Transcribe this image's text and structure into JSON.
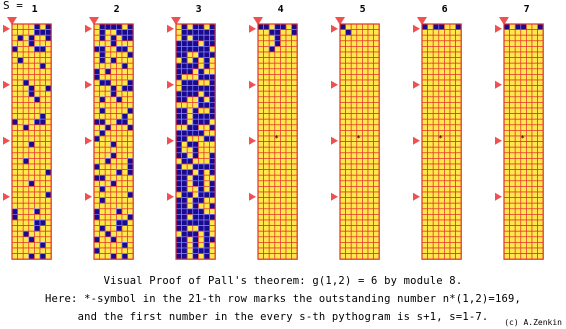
{
  "header": {
    "s_label": "S ="
  },
  "columns": [
    {
      "label": "1",
      "rows": [
        "0000101",
        "0000111",
        "0101001",
        "0001000",
        "1000110",
        "0000000",
        "0100000",
        "0000010",
        "0000000",
        "0000000",
        "0010000",
        "0001001",
        "0001000",
        "0000100",
        "0000000",
        "0000000",
        "0000010",
        "1000110",
        "0010000",
        "0000000",
        "0000000",
        "0001000",
        "0000000",
        "0000000",
        "0010000",
        "0000000",
        "0000001",
        "0000000",
        "0001000",
        "0000000",
        "0000001",
        "0000000",
        "0000000",
        "1000100",
        "1000000",
        "0000110",
        "0000100",
        "0010000",
        "0001000",
        "0000010",
        "0000000",
        "0001010"
      ]
    },
    {
      "label": "2",
      "rows": [
        "0111101",
        "0100111",
        "0101011",
        "0001000",
        "1100110",
        "0100001",
        "0101000",
        "0000010",
        "1010000",
        "1000000",
        "0110001",
        "0001011",
        "0001000",
        "0100100",
        "0000000",
        "0100001",
        "0000010",
        "1100110",
        "0010001",
        "0100000",
        "1000000",
        "0001000",
        "0000000",
        "0001000",
        "0010001",
        "1000001",
        "0000101",
        "1100000",
        "0001000",
        "0100000",
        "0000001",
        "0100000",
        "0000000",
        "1000100",
        "1000001",
        "0000110",
        "0100100",
        "0010000",
        "1001000",
        "0000010",
        "1000000",
        "0001010"
      ]
    },
    {
      "label": "3",
      "rows": [
        "0101101",
        "0111111",
        "0101111",
        "1111011",
        "1111110",
        "1100111",
        "0101010",
        "1111010",
        "1110100",
        "1000111",
        "0111001",
        "0111111",
        "1111011",
        "1100101",
        "0000111",
        "1101001",
        "1101111",
        "1101110",
        "0011001",
        "1111100",
        "1100011",
        "1011000",
        "1001000",
        "1101001",
        "0110001",
        "1001111",
        "1110101",
        "1101100",
        "1101101",
        "1100101",
        "0110111",
        "1101100",
        "1101001",
        "1111100",
        "1101111",
        "1111110",
        "1100110",
        "0111010",
        "1101011",
        "1101010",
        "1101110",
        "1101010"
      ]
    },
    {
      "label": "4",
      "rows": [
        "1101101",
        "0011001",
        "0001000",
        "0001000",
        "0010000",
        "0000000",
        "0000000",
        "0000000",
        "0000000",
        "0000000",
        "0000000",
        "0000000",
        "0000000",
        "0000000",
        "0000000",
        "0000000",
        "0000000",
        "0000000",
        "0000000",
        "0000000",
        "0000000",
        "0000000",
        "0000000",
        "0000000",
        "0000000",
        "0000000",
        "0000000",
        "0000000",
        "0000000",
        "0000000",
        "0000000",
        "0000000",
        "0000000",
        "0000000",
        "0000000",
        "0000000",
        "0000000",
        "0000000",
        "0000000",
        "0000000",
        "0000000",
        "0000000"
      ]
    },
    {
      "label": "5",
      "rows": [
        "1000000",
        "0100000",
        "0000000",
        "0000000",
        "0000000",
        "0000000",
        "0000000",
        "0000000",
        "0000000",
        "0000000",
        "0000000",
        "0000000",
        "0000000",
        "0000000",
        "0000000",
        "0000000",
        "0000000",
        "0000000",
        "0000000",
        "0000000",
        "0000000",
        "0000000",
        "0000000",
        "0000000",
        "0000000",
        "0000000",
        "0000000",
        "0000000",
        "0000000",
        "0000000",
        "0000000",
        "0000000",
        "0000000",
        "0000000",
        "0000000",
        "0000000",
        "0000000",
        "0000000",
        "0000000",
        "0000000",
        "0000000",
        "0000000"
      ]
    },
    {
      "label": "6",
      "rows": [
        "1011001",
        "0000000",
        "0000000",
        "0000000",
        "0000000",
        "0000000",
        "0000000",
        "0000000",
        "0000000",
        "0000000",
        "0000000",
        "0000000",
        "0000000",
        "0000000",
        "0000000",
        "0000000",
        "0000000",
        "0000000",
        "0000000",
        "0000000",
        "0000000",
        "0000000",
        "0000000",
        "0000000",
        "0000000",
        "0000000",
        "0000000",
        "0000000",
        "0000000",
        "0000000",
        "0000000",
        "0000000",
        "0000000",
        "0000000",
        "0000000",
        "0000000",
        "0000000",
        "0000000",
        "0000000",
        "0000000",
        "0000000",
        "0000000"
      ]
    },
    {
      "label": "7",
      "rows": [
        "1011001",
        "0000000",
        "0000000",
        "0000000",
        "0000000",
        "0000000",
        "0000000",
        "0000000",
        "0000000",
        "0000000",
        "0000000",
        "0000000",
        "0000000",
        "0000000",
        "0000000",
        "0000000",
        "0000000",
        "0000000",
        "0000000",
        "0000000",
        "0000000",
        "0000000",
        "0000000",
        "0000000",
        "0000000",
        "0000000",
        "0000000",
        "0000000",
        "0000000",
        "0000000",
        "0000000",
        "0000000",
        "0000000",
        "0000000",
        "0000000",
        "0000000",
        "0000000",
        "0000000",
        "0000000",
        "0000000",
        "0000000",
        "0000000"
      ]
    }
  ],
  "marked_row": 21,
  "marked_columns": [
    4,
    5,
    6,
    7
  ],
  "mark_symbol": "*",
  "caption": {
    "line1": "Visual Proof of Pall's theorem: g(1,2) = 6 by module 8.",
    "line2": "Here: *-symbol in the 21-th row marks the outstanding number n*(1,2)=169,",
    "line3": "and the first number in the every s-th pythogram is s+1, s=1-7."
  },
  "credit": "(c) A.Zenkin",
  "colors": {
    "filled": "#1a0a8c",
    "empty": "#ffe84a",
    "grid_on_filled": "#7f7fff",
    "grid_on_empty": "#e23030",
    "marker": "#f05050"
  }
}
